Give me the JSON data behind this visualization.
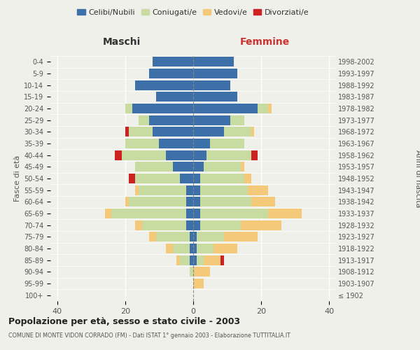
{
  "age_groups": [
    "100+",
    "95-99",
    "90-94",
    "85-89",
    "80-84",
    "75-79",
    "70-74",
    "65-69",
    "60-64",
    "55-59",
    "50-54",
    "45-49",
    "40-44",
    "35-39",
    "30-34",
    "25-29",
    "20-24",
    "15-19",
    "10-14",
    "5-9",
    "0-4"
  ],
  "birth_years": [
    "≤ 1902",
    "1903-1907",
    "1908-1912",
    "1913-1917",
    "1918-1922",
    "1923-1927",
    "1928-1932",
    "1933-1937",
    "1938-1942",
    "1943-1947",
    "1948-1952",
    "1953-1957",
    "1958-1962",
    "1963-1967",
    "1968-1972",
    "1973-1977",
    "1978-1982",
    "1983-1987",
    "1988-1992",
    "1993-1997",
    "1998-2002"
  ],
  "male": {
    "celibi": [
      0,
      0,
      0,
      1,
      1,
      1,
      2,
      2,
      2,
      2,
      4,
      6,
      8,
      10,
      12,
      13,
      18,
      11,
      17,
      13,
      12
    ],
    "coniugati": [
      0,
      0,
      1,
      3,
      5,
      10,
      13,
      22,
      17,
      14,
      13,
      11,
      13,
      10,
      7,
      3,
      2,
      0,
      0,
      0,
      0
    ],
    "vedovi": [
      0,
      0,
      0,
      1,
      2,
      2,
      2,
      2,
      1,
      1,
      0,
      0,
      0,
      0,
      0,
      0,
      0,
      0,
      0,
      0,
      0
    ],
    "divorziati": [
      0,
      0,
      0,
      0,
      0,
      0,
      0,
      0,
      0,
      0,
      2,
      0,
      2,
      0,
      1,
      0,
      0,
      0,
      0,
      0,
      0
    ]
  },
  "female": {
    "nubili": [
      0,
      0,
      0,
      1,
      1,
      1,
      2,
      2,
      2,
      2,
      2,
      3,
      4,
      5,
      9,
      11,
      19,
      13,
      11,
      13,
      12
    ],
    "coniugate": [
      0,
      0,
      0,
      2,
      5,
      8,
      12,
      20,
      15,
      14,
      13,
      11,
      13,
      10,
      8,
      4,
      3,
      0,
      0,
      0,
      0
    ],
    "vedove": [
      0,
      3,
      5,
      5,
      7,
      10,
      12,
      10,
      7,
      6,
      2,
      1,
      0,
      0,
      1,
      0,
      1,
      0,
      0,
      0,
      0
    ],
    "divorziate": [
      0,
      0,
      0,
      1,
      0,
      0,
      0,
      0,
      0,
      0,
      0,
      0,
      2,
      0,
      0,
      0,
      0,
      0,
      0,
      0,
      0
    ]
  },
  "colors": {
    "celibi_nubili": "#3d6fa8",
    "coniugati": "#c8dba0",
    "vedovi": "#f5c97a",
    "divorziati": "#cc2222"
  },
  "xlim": [
    -42,
    42
  ],
  "xticks": [
    -40,
    -20,
    0,
    20,
    40
  ],
  "xticklabels": [
    "40",
    "20",
    "0",
    "20",
    "40"
  ],
  "title": "Popolazione per età, sesso e stato civile - 2003",
  "subtitle": "COMUNE DI MONTE VIDON CORRADO (FM) - Dati ISTAT 1° gennaio 2003 - Elaborazione TUTTITALIA.IT",
  "ylabel_left": "Fasce di età",
  "ylabel_right": "Anni di nascita",
  "legend_labels": [
    "Celibi/Nubili",
    "Coniugati/e",
    "Vedovi/e",
    "Divorziati/e"
  ],
  "background_color": "#f0f0eb"
}
